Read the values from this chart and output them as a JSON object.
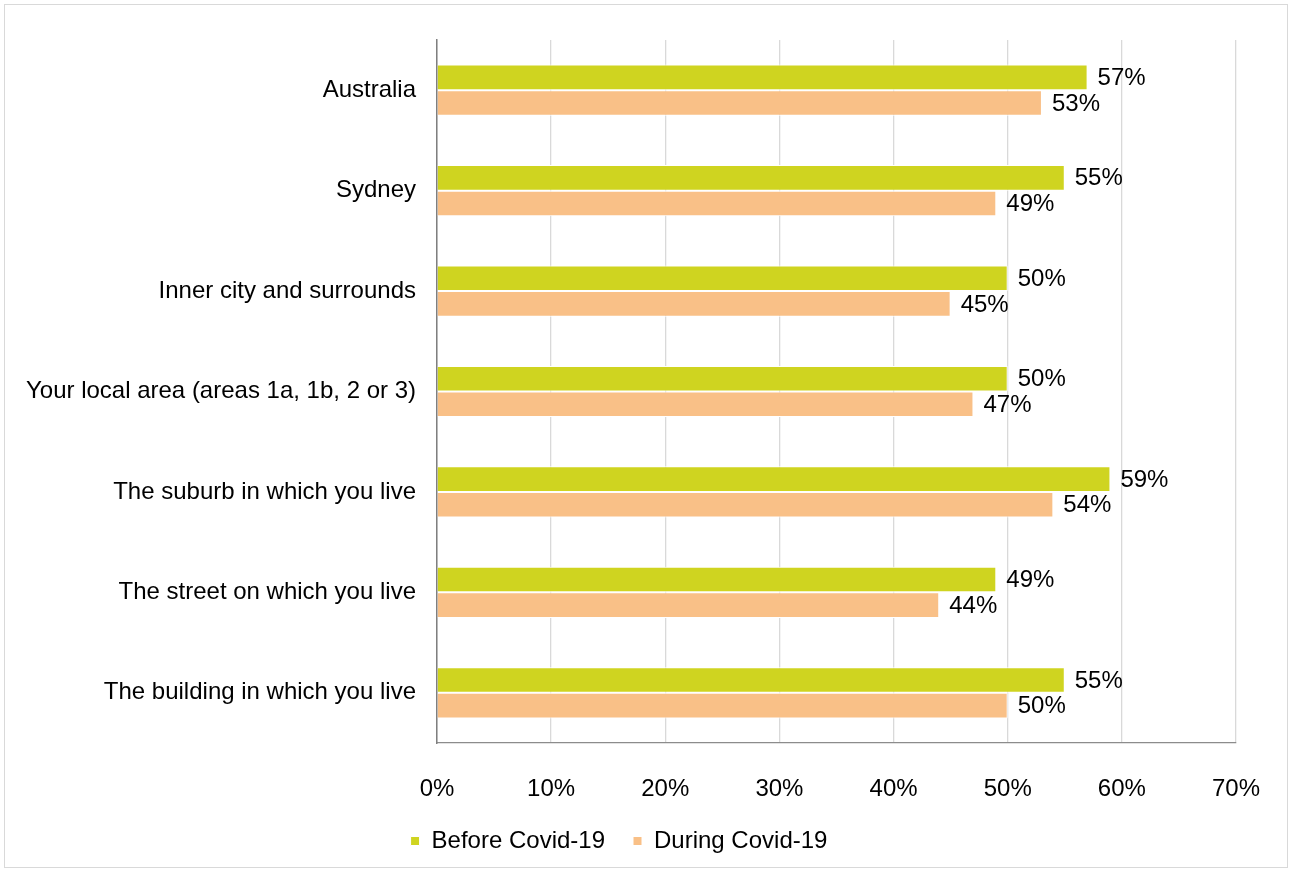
{
  "chart_data": {
    "type": "bar",
    "orientation": "horizontal",
    "categories": [
      "Australia",
      "Sydney",
      "Inner city and surrounds",
      "Your local area (areas 1a, 1b, 2 or 3)",
      "The suburb in which you live",
      "The street on which you live",
      "The building in which you live"
    ],
    "series": [
      {
        "name": "Before Covid-19",
        "color": "#cfd420",
        "values": [
          57,
          55,
          50,
          50,
          59,
          49,
          55
        ],
        "value_labels": [
          "57%",
          "55%",
          "50%",
          "50%",
          "59%",
          "49%",
          "55%"
        ]
      },
      {
        "name": "During Covid-19",
        "color": "#f9c087",
        "values": [
          53,
          49,
          45,
          47,
          54,
          44,
          50
        ],
        "value_labels": [
          "53%",
          "49%",
          "45%",
          "47%",
          "54%",
          "44%",
          "50%"
        ]
      }
    ],
    "xlim": [
      0,
      70
    ],
    "xticks": [
      {
        "value": 0,
        "label": "0%"
      },
      {
        "value": 10,
        "label": "10%"
      },
      {
        "value": 20,
        "label": "20%"
      },
      {
        "value": 30,
        "label": "30%"
      },
      {
        "value": 40,
        "label": "40%"
      },
      {
        "value": 50,
        "label": "50%"
      },
      {
        "value": 60,
        "label": "60%"
      },
      {
        "value": 70,
        "label": "70%"
      }
    ],
    "grid": "x",
    "legend": "bottom"
  }
}
